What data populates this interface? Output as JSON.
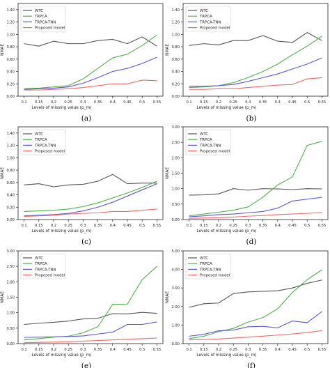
{
  "legend_labels": [
    "WTC",
    "TRPCA",
    "TRPCA-TNN",
    "Proposed model"
  ],
  "colors": {
    "WTC": "#555555",
    "TRPCA": "#4fb04a",
    "TRPCA-TNN": "#5a56d8",
    "Proposed model": "#f06a6a"
  },
  "chart_data": [
    {
      "type": "line",
      "panel": "(a)",
      "xlabel": "Levels of missing value (p_m)",
      "ylabel": "NMAE",
      "x": [
        0.1,
        0.15,
        0.2,
        0.25,
        0.3,
        0.35,
        0.4,
        0.45,
        0.5,
        0.55
      ],
      "xticks": [
        "0.1",
        "0.15",
        "0.2",
        "0.25",
        "0.3",
        "0.35",
        "0.4",
        "0.45",
        "0.5",
        "0.55"
      ],
      "ylim": [
        0,
        1.5
      ],
      "yticks": [
        "0.00",
        "0.20",
        "0.40",
        "0.60",
        "0.80",
        "1.00",
        "1.20",
        "1.40"
      ],
      "series": [
        {
          "name": "WTC",
          "values": [
            0.85,
            0.81,
            0.89,
            0.85,
            0.85,
            0.9,
            0.92,
            0.85,
            0.96,
            0.81
          ]
        },
        {
          "name": "TRPCA",
          "values": [
            0.12,
            0.13,
            0.15,
            0.17,
            0.28,
            0.45,
            0.62,
            0.68,
            0.82,
            0.99
          ]
        },
        {
          "name": "TRPCA-TNN",
          "values": [
            0.11,
            0.12,
            0.13,
            0.15,
            0.21,
            0.3,
            0.4,
            0.45,
            0.53,
            0.63
          ]
        },
        {
          "name": "Proposed model",
          "values": [
            0.1,
            0.1,
            0.11,
            0.12,
            0.14,
            0.17,
            0.2,
            0.2,
            0.26,
            0.25
          ]
        }
      ]
    },
    {
      "type": "line",
      "panel": "(b)",
      "xlabel": "Levels of missing value (p_m)",
      "ylabel": "NMAE",
      "x": [
        0.1,
        0.15,
        0.2,
        0.25,
        0.3,
        0.35,
        0.4,
        0.45,
        0.5,
        0.55
      ],
      "xticks": [
        "0.1",
        "0.15",
        "0.2",
        "0.25",
        "0.3",
        "0.35",
        "0.4",
        "0.45",
        "0.5",
        "0.55"
      ],
      "ylim": [
        0,
        1.5
      ],
      "yticks": [
        "0.00",
        "0.20",
        "0.40",
        "0.60",
        "0.80",
        "1.00",
        "1.20",
        "1.40"
      ],
      "series": [
        {
          "name": "WTC",
          "values": [
            0.82,
            0.85,
            0.83,
            0.9,
            0.9,
            0.98,
            0.89,
            0.87,
            1.03,
            0.9
          ]
        },
        {
          "name": "TRPCA",
          "values": [
            0.14,
            0.15,
            0.17,
            0.22,
            0.3,
            0.4,
            0.52,
            0.67,
            0.81,
            0.97
          ]
        },
        {
          "name": "TRPCA-TNN",
          "values": [
            0.16,
            0.16,
            0.17,
            0.19,
            0.24,
            0.3,
            0.36,
            0.44,
            0.52,
            0.62
          ]
        },
        {
          "name": "Proposed model",
          "values": [
            0.11,
            0.11,
            0.12,
            0.12,
            0.14,
            0.16,
            0.18,
            0.19,
            0.28,
            0.3
          ]
        }
      ]
    },
    {
      "type": "line",
      "panel": "(c)",
      "xlabel": "Levels of missing value (p_m)",
      "ylabel": "NMAE",
      "x": [
        0.1,
        0.15,
        0.2,
        0.25,
        0.3,
        0.35,
        0.4,
        0.45,
        0.5,
        0.55
      ],
      "xticks": [
        "0.1",
        "0.15",
        "0.2",
        "0.25",
        "0.3",
        "0.35",
        "0.4",
        "0.45",
        "0.5",
        "0.55"
      ],
      "ylim": [
        0,
        1.5
      ],
      "yticks": [
        "0.00",
        "0.20",
        "0.40",
        "0.60",
        "0.80",
        "1.00",
        "1.20",
        "1.40"
      ],
      "series": [
        {
          "name": "WTC",
          "values": [
            0.56,
            0.58,
            0.53,
            0.56,
            0.57,
            0.62,
            0.73,
            0.58,
            0.59,
            0.59
          ]
        },
        {
          "name": "TRPCA",
          "values": [
            0.13,
            0.14,
            0.15,
            0.17,
            0.21,
            0.27,
            0.35,
            0.43,
            0.52,
            0.62
          ]
        },
        {
          "name": "TRPCA-TNN",
          "values": [
            0.06,
            0.07,
            0.08,
            0.1,
            0.14,
            0.2,
            0.28,
            0.38,
            0.48,
            0.58
          ]
        },
        {
          "name": "Proposed model",
          "values": [
            0.05,
            0.06,
            0.07,
            0.09,
            0.1,
            0.11,
            0.13,
            0.13,
            0.15,
            0.17
          ]
        }
      ]
    },
    {
      "type": "line",
      "panel": "(d)",
      "xlabel": "Levels of missing value (p_m)",
      "ylabel": "NMAE",
      "x": [
        0.1,
        0.15,
        0.2,
        0.25,
        0.3,
        0.35,
        0.4,
        0.45,
        0.5,
        0.55
      ],
      "xticks": [
        "0.1",
        "0.15",
        "0.2",
        "0.25",
        "0.3",
        "0.35",
        "0.4",
        "0.45",
        "0.5",
        "0.55"
      ],
      "ylim": [
        0,
        3.0
      ],
      "yticks": [
        "0.00",
        "0.50",
        "1.00",
        "1.50",
        "2.00",
        "2.50",
        "3.00"
      ],
      "series": [
        {
          "name": "WTC",
          "values": [
            0.79,
            0.8,
            0.83,
            1.0,
            0.95,
            1.0,
            0.99,
            0.97,
            1.0,
            0.99
          ]
        },
        {
          "name": "TRPCA",
          "values": [
            0.12,
            0.18,
            0.24,
            0.3,
            0.41,
            0.72,
            1.12,
            1.38,
            2.4,
            2.53
          ]
        },
        {
          "name": "TRPCA-TNN",
          "values": [
            0.09,
            0.12,
            0.16,
            0.18,
            0.22,
            0.26,
            0.37,
            0.6,
            0.66,
            0.72
          ]
        },
        {
          "name": "Proposed model",
          "values": [
            0.04,
            0.05,
            0.06,
            0.08,
            0.11,
            0.13,
            0.16,
            0.18,
            0.2,
            0.23
          ]
        }
      ]
    },
    {
      "type": "line",
      "panel": "(e)",
      "xlabel": "Levels of missing value (p_m)",
      "ylabel": "NMAE",
      "x": [
        0.1,
        0.15,
        0.2,
        0.25,
        0.3,
        0.35,
        0.4,
        0.45,
        0.5,
        0.55
      ],
      "xticks": [
        "0.1",
        "0.15",
        "0.2",
        "0.25",
        "0.3",
        "0.35",
        "0.4",
        "0.45",
        "0.5",
        "0.55"
      ],
      "ylim": [
        0,
        3.0
      ],
      "yticks": [
        "0.00",
        "0.50",
        "1.00",
        "1.50",
        "2.00",
        "2.50",
        "3.00"
      ],
      "series": [
        {
          "name": "WTC",
          "values": [
            0.62,
            0.66,
            0.69,
            0.73,
            0.8,
            0.82,
            0.97,
            0.96,
            1.01,
            0.98
          ]
        },
        {
          "name": "TRPCA",
          "values": [
            0.12,
            0.16,
            0.21,
            0.24,
            0.35,
            0.55,
            1.27,
            1.28,
            2.07,
            2.5
          ]
        },
        {
          "name": "TRPCA-TNN",
          "values": [
            0.2,
            0.21,
            0.22,
            0.23,
            0.25,
            0.31,
            0.37,
            0.62,
            0.62,
            0.7
          ]
        },
        {
          "name": "Proposed model",
          "values": [
            0.03,
            0.04,
            0.05,
            0.06,
            0.08,
            0.1,
            0.12,
            0.14,
            0.16,
            0.18
          ]
        }
      ]
    },
    {
      "type": "line",
      "panel": "(f)",
      "xlabel": "Levels of missing value (p_m)",
      "ylabel": "NMAE",
      "x": [
        0.1,
        0.15,
        0.2,
        0.25,
        0.3,
        0.35,
        0.4,
        0.45,
        0.5,
        0.55
      ],
      "xticks": [
        "0.1",
        "0.15",
        "0.2",
        "0.25",
        "0.3",
        "0.35",
        "0.4",
        "0.45",
        "0.5",
        "0.55"
      ],
      "ylim": [
        0,
        5.0
      ],
      "yticks": [
        "0.00",
        "1.00",
        "2.00",
        "3.00",
        "4.00",
        "5.00"
      ],
      "series": [
        {
          "name": "WTC",
          "values": [
            1.96,
            2.15,
            2.19,
            2.7,
            2.79,
            2.82,
            2.85,
            3.0,
            3.25,
            3.43
          ]
        },
        {
          "name": "TRPCA",
          "values": [
            0.27,
            0.4,
            0.64,
            0.82,
            1.16,
            1.4,
            1.88,
            2.76,
            3.45,
            3.98
          ]
        },
        {
          "name": "TRPCA-TNN",
          "values": [
            0.4,
            0.5,
            0.69,
            0.73,
            0.91,
            0.93,
            0.85,
            1.22,
            1.13,
            1.73
          ]
        },
        {
          "name": "Proposed model",
          "values": [
            0.2,
            0.22,
            0.25,
            0.3,
            0.35,
            0.4,
            0.46,
            0.52,
            0.6,
            0.7
          ]
        }
      ]
    }
  ]
}
